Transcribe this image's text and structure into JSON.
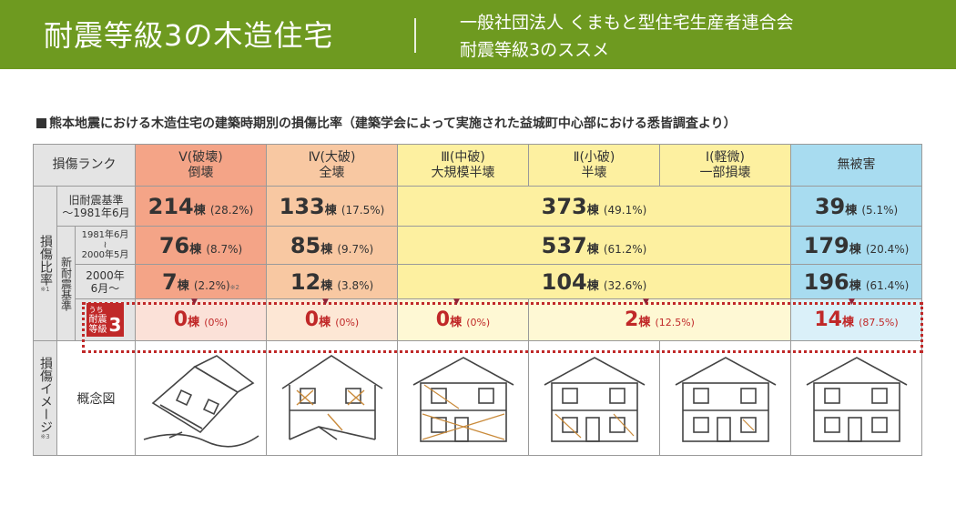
{
  "header": {
    "title": "耐震等級3の木造住宅",
    "subtitle_line1": "一般社団法人 くまもと型住宅生産者連合会",
    "subtitle_line2": "耐震等級3のススメ"
  },
  "figure": {
    "caption": "熊本地震における木造住宅の建築時期別の損傷比率（建築学会によって実施された益城町中心部における悉皆調査より）",
    "corner_label": "損傷ランク",
    "side_label_ratio": "損傷比率",
    "side_label_ratio_note": "※1",
    "side_label_image": "損傷イメージ",
    "side_label_image_note": "※3",
    "new_std_label": "新耐震基準",
    "columns": [
      {
        "rank": "Ⅴ(破壊)",
        "desc": "倒壊",
        "color": "#f4a487"
      },
      {
        "rank": "Ⅳ(大破)",
        "desc": "全壊",
        "color": "#f8c8a2"
      },
      {
        "rank": "Ⅲ(中破)",
        "desc": "大規模半壊",
        "color": "#fdf0a0"
      },
      {
        "rank": "Ⅱ(小破)",
        "desc": "半壊",
        "color": "#fdf0a0"
      },
      {
        "rank": "Ⅰ(軽微)",
        "desc": "一部損壊",
        "color": "#fdf0a0"
      },
      {
        "rank": "",
        "desc": "無被害",
        "color": "#a8dcf0"
      }
    ],
    "unit": "棟",
    "rows": {
      "old": {
        "label1": "旧耐震基準",
        "label2": "～1981年6月",
        "v": {
          "count": "214",
          "pct": "(28.2%)"
        },
        "iv": {
          "count": "133",
          "pct": "(17.5%)"
        },
        "mid": {
          "count": "373",
          "pct": "(49.1%)"
        },
        "none": {
          "count": "39",
          "pct": "(5.1%)"
        }
      },
      "new1": {
        "label1": "1981年6月",
        "label2": "2000年5月",
        "v": {
          "count": "76",
          "pct": "(8.7%)"
        },
        "iv": {
          "count": "85",
          "pct": "(9.7%)"
        },
        "mid": {
          "count": "537",
          "pct": "(61.2%)"
        },
        "none": {
          "count": "179",
          "pct": "(20.4%)"
        }
      },
      "new2": {
        "label1": "2000年",
        "label2": "6月～",
        "v": {
          "count": "7",
          "pct": "(2.2%)",
          "note": "※2"
        },
        "iv": {
          "count": "12",
          "pct": "(3.8%)"
        },
        "mid": {
          "count": "104",
          "pct": "(32.6%)"
        },
        "none": {
          "count": "196",
          "pct": "(61.4%)"
        }
      },
      "grade3": {
        "badge_prefix": "うち",
        "badge_line1": "耐震",
        "badge_line2": "等級",
        "badge_num": "3",
        "v": {
          "count": "0",
          "pct": "(0%)"
        },
        "iv": {
          "count": "0",
          "pct": "(0%)"
        },
        "iii": {
          "count": "0",
          "pct": "(0%)"
        },
        "ii_i": {
          "count": "2",
          "pct": "(12.5%)"
        },
        "none": {
          "count": "14",
          "pct": "(87.5%)"
        }
      }
    },
    "image_row_label": "概念図"
  }
}
